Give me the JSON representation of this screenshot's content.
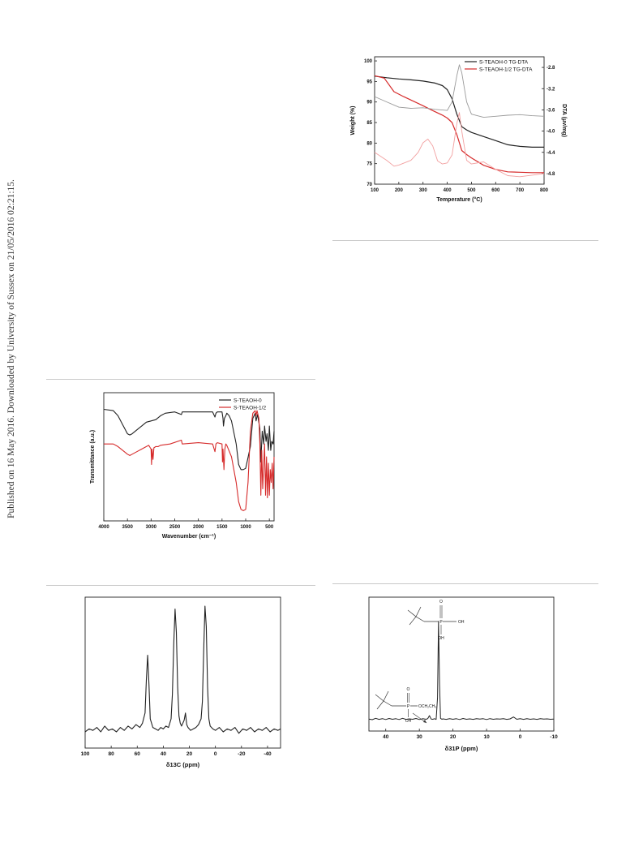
{
  "page": {
    "side_note": "Published on 16 May 2016. Downloaded by University of Sussex on 21/05/2016 02:21:15."
  },
  "chart_data": [
    {
      "id": "tg-dta",
      "type": "line",
      "xlabel": "Temperature (°C)",
      "ylabel": "Weight (%)",
      "y2label": "DTA (μv/mg)",
      "xlim": [
        100,
        800
      ],
      "ylim": [
        70,
        101
      ],
      "y2lim": [
        -5.0,
        -2.6
      ],
      "xticks": [
        100,
        200,
        300,
        400,
        500,
        600,
        700,
        800
      ],
      "yticks": [
        70,
        75,
        80,
        85,
        90,
        95,
        100
      ],
      "y2ticks": [
        -2.8,
        -3.2,
        -3.6,
        -4.0,
        -4.4,
        -4.8
      ],
      "y2tick_labels": [
        "-2.8",
        "-3.2",
        "-3.6",
        "-4.0",
        "-4.4",
        "-4.8"
      ],
      "legend_position": "top-right",
      "legend": [
        "S-TEAOH-0 TG-DTA",
        "S-TEAOH-1/2 TG-DTA"
      ],
      "colors": [
        "#222222",
        "#d62b2b"
      ],
      "series": [
        {
          "name": "S-TEAOH-0 TG-DTA",
          "axis": "left",
          "color": "#222222",
          "width": 1.2,
          "x": [
            100,
            150,
            200,
            250,
            300,
            350,
            380,
            400,
            420,
            440,
            460,
            480,
            500,
            550,
            600,
            650,
            700,
            750,
            800
          ],
          "y": [
            96.3,
            95.9,
            95.6,
            95.4,
            95.1,
            94.6,
            94.0,
            93.0,
            90.8,
            87.0,
            84.0,
            83.2,
            82.6,
            81.6,
            80.6,
            79.6,
            79.2,
            79.0,
            79.0
          ]
        },
        {
          "name": "S-TEAOH-1/2 TG-DTA",
          "axis": "left",
          "color": "#d62b2b",
          "width": 1.2,
          "x": [
            100,
            140,
            180,
            220,
            260,
            300,
            340,
            380,
            400,
            420,
            440,
            460,
            480,
            500,
            550,
            600,
            650,
            700,
            750,
            800
          ],
          "y": [
            96.4,
            95.8,
            92.5,
            91.3,
            90.2,
            89.1,
            87.9,
            86.8,
            86.1,
            85.0,
            82.0,
            78.2,
            77.2,
            76.4,
            74.6,
            73.6,
            73.0,
            72.9,
            72.8,
            72.8
          ]
        },
        {
          "name": "S-TEAOH-0 DTA",
          "axis": "right",
          "color": "#9a9a9a",
          "width": 0.9,
          "x": [
            100,
            150,
            200,
            250,
            300,
            350,
            400,
            420,
            440,
            450,
            460,
            480,
            500,
            550,
            600,
            650,
            700,
            750,
            800
          ],
          "y": [
            -3.35,
            -3.45,
            -3.55,
            -3.57,
            -3.56,
            -3.59,
            -3.61,
            -3.45,
            -2.95,
            -2.75,
            -2.9,
            -3.45,
            -3.68,
            -3.74,
            -3.72,
            -3.7,
            -3.69,
            -3.71,
            -3.72
          ]
        },
        {
          "name": "S-TEAOH-1/2 DTA",
          "axis": "right",
          "color": "#f2a0a0",
          "width": 0.9,
          "x": [
            100,
            150,
            180,
            200,
            250,
            280,
            300,
            320,
            340,
            360,
            380,
            400,
            420,
            440,
            450,
            460,
            480,
            500,
            550,
            600,
            650,
            700,
            750,
            800
          ],
          "y": [
            -4.4,
            -4.55,
            -4.66,
            -4.64,
            -4.55,
            -4.4,
            -4.22,
            -4.15,
            -4.28,
            -4.56,
            -4.62,
            -4.6,
            -4.45,
            -3.85,
            -3.65,
            -4.0,
            -4.55,
            -4.62,
            -4.58,
            -4.72,
            -4.84,
            -4.86,
            -4.83,
            -4.8
          ]
        }
      ]
    },
    {
      "id": "ftir",
      "type": "line",
      "xlabel": "Wavenumber (cm⁻¹)",
      "ylabel": "Transmittance (a.u.)",
      "xlim": [
        4000,
        400
      ],
      "ylim": [
        0,
        100
      ],
      "xticks": [
        4000,
        3500,
        3000,
        2500,
        2000,
        1500,
        1000,
        500
      ],
      "legend_position": "top-right",
      "legend": [
        "S-TEAOH-0",
        "S-TEAOH-1/2"
      ],
      "series": [
        {
          "name": "S-TEAOH-0",
          "color": "#222222",
          "width": 1.1,
          "x": [
            4000,
            3800,
            3700,
            3600,
            3500,
            3450,
            3400,
            3300,
            3200,
            3100,
            3000,
            2900,
            2800,
            2700,
            2500,
            2360,
            2340,
            2000,
            1900,
            1700,
            1650,
            1630,
            1600,
            1500,
            1480,
            1470,
            1450,
            1420,
            1400,
            1350,
            1300,
            1200,
            1150,
            1100,
            1050,
            1000,
            900,
            850,
            800,
            780,
            750,
            700,
            680,
            650,
            620,
            600,
            570,
            550,
            520,
            500,
            470,
            450,
            420,
            400
          ],
          "y": [
            87,
            86,
            82,
            75,
            68,
            67,
            68,
            71,
            74,
            77,
            78,
            79,
            82,
            84,
            85,
            83,
            85,
            85,
            85,
            85,
            81,
            84,
            85,
            85,
            80,
            74,
            80,
            82,
            84,
            82,
            78,
            60,
            44,
            40,
            40,
            41,
            58,
            80,
            84,
            78,
            83,
            72,
            46,
            70,
            60,
            74,
            62,
            68,
            55,
            74,
            55,
            62,
            60,
            70
          ]
        },
        {
          "name": "S-TEAOH-1/2",
          "color": "#d62b2b",
          "width": 1.1,
          "x": [
            4000,
            3800,
            3700,
            3600,
            3500,
            3450,
            3400,
            3300,
            3200,
            3100,
            3050,
            3000,
            2990,
            2980,
            2960,
            2940,
            2900,
            2850,
            2800,
            2600,
            2360,
            2340,
            2000,
            1700,
            1650,
            1630,
            1600,
            1500,
            1490,
            1480,
            1460,
            1440,
            1420,
            1400,
            1300,
            1200,
            1150,
            1100,
            1050,
            1000,
            950,
            900,
            850,
            800,
            780,
            760,
            720,
            700,
            680,
            660,
            640,
            600,
            580,
            560,
            540,
            520,
            500,
            480,
            460,
            440,
            420,
            400
          ],
          "y": [
            60,
            60,
            58,
            55,
            52,
            51,
            52,
            54,
            56,
            58,
            59,
            56,
            44,
            56,
            48,
            57,
            58,
            58,
            59,
            60,
            63,
            60,
            61,
            60,
            54,
            60,
            61,
            60,
            46,
            56,
            40,
            56,
            60,
            59,
            50,
            30,
            15,
            9,
            8,
            9,
            30,
            70,
            84,
            86,
            82,
            86,
            80,
            60,
            20,
            55,
            25,
            60,
            20,
            50,
            18,
            45,
            20,
            40,
            30,
            45,
            25,
            50
          ]
        }
      ]
    },
    {
      "id": "c13",
      "type": "line",
      "xlabel": "δ13C (ppm)",
      "xlim": [
        100,
        -50
      ],
      "ylim": [
        0,
        100
      ],
      "xticks": [
        100,
        80,
        60,
        40,
        20,
        0,
        -20,
        -40
      ],
      "series": [
        {
          "color": "#222222",
          "width": 1.1,
          "x": [
            100,
            97,
            94,
            91,
            88,
            85,
            82,
            79,
            76,
            73,
            70,
            67,
            64,
            61,
            58,
            56,
            54,
            53,
            52,
            51,
            50,
            48,
            46,
            44,
            42,
            40,
            38,
            36,
            34,
            33,
            32,
            31,
            30,
            29,
            28,
            27,
            26,
            24,
            23,
            22,
            21,
            19,
            17,
            15,
            13,
            11,
            10,
            9,
            8,
            7,
            6,
            5,
            4,
            2,
            0,
            -3,
            -6,
            -9,
            -12,
            -15,
            -18,
            -21,
            -24,
            -27,
            -30,
            -33,
            -36,
            -39,
            -42,
            -45,
            -48,
            -50
          ],
          "y": [
            9,
            11,
            10,
            12,
            9,
            13,
            10,
            11,
            9,
            12,
            10,
            13,
            11,
            14,
            12,
            15,
            22,
            45,
            62,
            42,
            18,
            12,
            11,
            10,
            12,
            11,
            13,
            12,
            18,
            35,
            70,
            94,
            78,
            40,
            20,
            15,
            13,
            17,
            22,
            14,
            12,
            10,
            11,
            12,
            14,
            18,
            30,
            65,
            96,
            82,
            40,
            18,
            13,
            11,
            10,
            12,
            9,
            11,
            10,
            12,
            8,
            11,
            10,
            12,
            9,
            11,
            10,
            12,
            9,
            11,
            10,
            11
          ]
        }
      ]
    },
    {
      "id": "p31",
      "type": "line",
      "xlabel": "δ31P (ppm)",
      "xlim": [
        45,
        -10
      ],
      "ylim": [
        0,
        100
      ],
      "xticks": [
        40,
        30,
        20,
        10,
        0,
        -10
      ],
      "annotations": [
        "OH",
        "OH",
        "OCH₂CH₃",
        "OH"
      ],
      "series": [
        {
          "color": "#222222",
          "width": 1.0,
          "x": [
            45,
            44,
            43,
            42,
            41,
            40,
            39,
            38,
            37,
            36,
            35,
            34,
            33,
            32,
            31,
            30,
            29,
            28,
            27.5,
            27,
            26.5,
            26,
            25.5,
            25,
            24.6,
            24.3,
            24.0,
            23.7,
            23.3,
            23,
            22,
            21,
            20,
            19,
            18,
            17,
            16,
            15,
            14,
            13,
            12,
            11,
            10,
            9,
            8,
            7,
            6,
            5,
            4,
            3,
            2,
            1,
            0,
            -1,
            -2,
            -3,
            -4,
            -5,
            -6,
            -7,
            -8,
            -9,
            -10
          ],
          "y": [
            9,
            8.5,
            9.5,
            8.7,
            9.3,
            8.6,
            9.4,
            8.8,
            9.2,
            8.6,
            9.5,
            8.7,
            9.1,
            8.8,
            9.4,
            8.6,
            9.2,
            8.8,
            9.3,
            11.5,
            9.0,
            8.8,
            9.2,
            8.7,
            25,
            82,
            35,
            9.5,
            8.8,
            9.1,
            8.7,
            9.3,
            8.8,
            9.2,
            8.6,
            9.4,
            8.8,
            9.1,
            8.7,
            9.3,
            8.9,
            9.2,
            8.6,
            9.3,
            8.8,
            9.1,
            8.9,
            9.2,
            8.7,
            9.1,
            10.5,
            8.8,
            9.2,
            8.7,
            9.3,
            8.8,
            9.1,
            8.7,
            9.2,
            8.9,
            9.1,
            8.8,
            9.0
          ]
        }
      ]
    }
  ]
}
